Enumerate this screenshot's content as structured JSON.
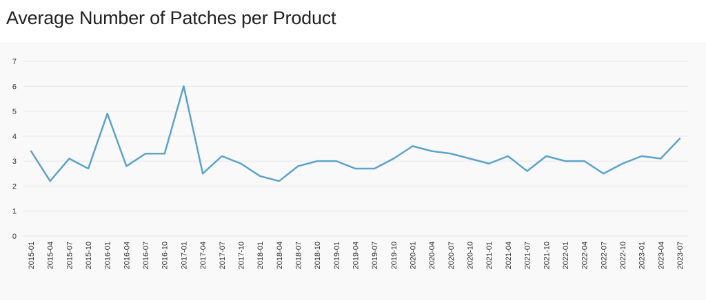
{
  "header": {
    "title": "Average Number of Patches per Product"
  },
  "colors": {
    "line": "#5ba3cc",
    "grid": "#e6e6e6",
    "background": "#f9f9f9"
  },
  "chart_data": {
    "type": "line",
    "title": "Average Number of Patches per Product",
    "xlabel": "",
    "ylabel": "",
    "ylim": [
      0,
      7
    ],
    "yticks": [
      "0",
      "1",
      "2",
      "3",
      "4",
      "5",
      "6",
      "7"
    ],
    "grid": true,
    "legend": "none",
    "categories": [
      "2015-01",
      "2015-04",
      "2015-07",
      "2015-10",
      "2016-01",
      "2016-04",
      "2016-07",
      "2016-10",
      "2017-01",
      "2017-04",
      "2017-07",
      "2017-10",
      "2018-01",
      "2018-04",
      "2018-07",
      "2018-10",
      "2019-01",
      "2019-04",
      "2019-07",
      "2019-10",
      "2020-01",
      "2020-04",
      "2020-07",
      "2020-10",
      "2021-01",
      "2021-04",
      "2021-07",
      "2021-10",
      "2022-01",
      "2022-04",
      "2022-07",
      "2022-10",
      "2023-01",
      "2023-04",
      "2023-07"
    ],
    "series": [
      {
        "values": [
          3.4,
          2.2,
          3.1,
          2.7,
          4.9,
          2.8,
          3.3,
          3.3,
          6.0,
          2.5,
          3.2,
          2.9,
          2.4,
          2.2,
          2.8,
          3.0,
          3.0,
          2.7,
          2.7,
          3.1,
          3.6,
          3.4,
          3.3,
          3.1,
          2.9,
          3.2,
          2.6,
          3.2,
          3.0,
          3.0,
          2.5,
          2.9,
          3.2,
          3.1,
          3.9
        ]
      }
    ]
  }
}
